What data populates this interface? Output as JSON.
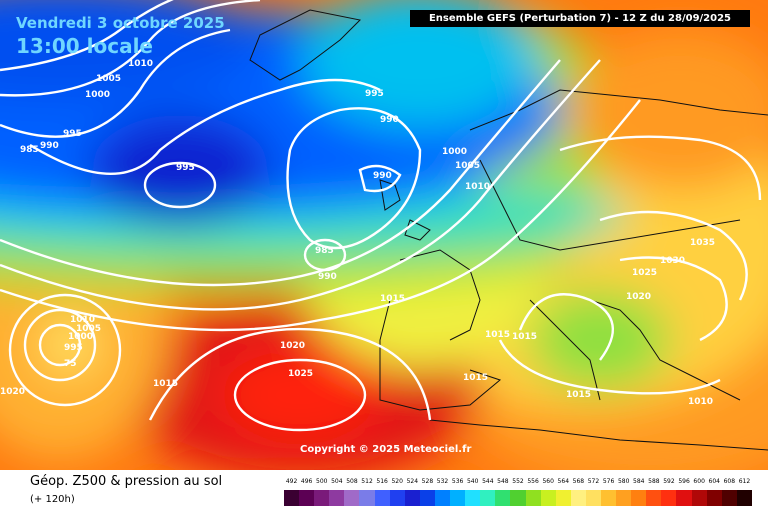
{
  "header": {
    "date": "Vendredi 3 octobre 2025",
    "time": "13:00 locale",
    "model_run": "Ensemble GEFS (Perturbation 7)  -  12 Z du 28/09/2025"
  },
  "footer": {
    "title": "Géop. Z500 & pression au sol",
    "offset": "(+ 120h)"
  },
  "copyright": "Copyright © 2025 Meteociel.fr",
  "isobar_labels": [
    "1010",
    "1005",
    "1000",
    "995",
    "990",
    "985",
    "995",
    "995",
    "990",
    "990",
    "1000",
    "1005",
    "1010",
    "985",
    "990",
    "1015",
    "1035",
    "1030",
    "1025",
    "1020",
    "1015",
    "1015",
    "1015",
    "1015",
    "1010",
    "1020",
    "1025",
    "1010",
    "1005",
    "1000",
    "995",
    "75",
    "1020",
    "1015"
  ],
  "color_scale": {
    "labels": [
      "492",
      "496",
      "500",
      "504",
      "508",
      "512",
      "516",
      "520",
      "524",
      "528",
      "532",
      "536",
      "540",
      "544",
      "548",
      "552",
      "556",
      "560",
      "564",
      "568",
      "572",
      "576",
      "580",
      "584",
      "588",
      "592",
      "596",
      "600",
      "604",
      "608",
      "612"
    ],
    "colors": [
      "#3a0032",
      "#5c0054",
      "#7a1a7a",
      "#8e3aa0",
      "#a06ac8",
      "#7a7ce8",
      "#4060ff",
      "#2040f0",
      "#1a20d0",
      "#0a40e8",
      "#0080ff",
      "#00b0ff",
      "#20e0ff",
      "#30f0c0",
      "#30e070",
      "#50d030",
      "#90e020",
      "#c8f020",
      "#f0f030",
      "#fff080",
      "#ffe060",
      "#ffc030",
      "#ffa020",
      "#ff8010",
      "#ff5010",
      "#ff3010",
      "#e01010",
      "#b00808",
      "#800000",
      "#500000",
      "#200000"
    ]
  }
}
